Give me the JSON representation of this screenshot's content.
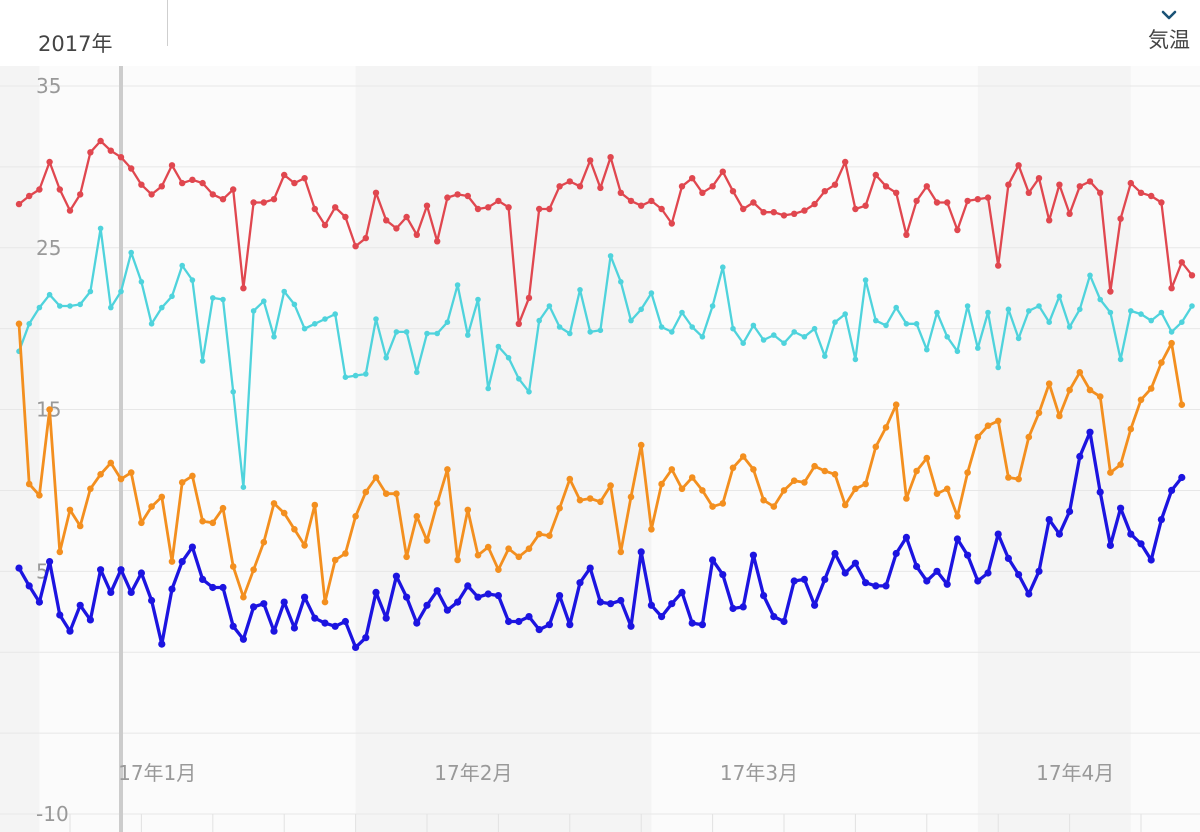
{
  "header": {
    "year_label": "2017年",
    "metric_label": "気温",
    "metric_icon": "chevron-down-icon"
  },
  "chart_data": {
    "type": "line",
    "title": "",
    "xlabel": "",
    "ylabel": "",
    "ylim": [
      -10,
      35
    ],
    "yticks": [
      {
        "label": "35",
        "value": 35
      },
      {
        "label": "25",
        "value": 25
      },
      {
        "label": "15",
        "value": 15
      },
      {
        "label": "5",
        "value": 5
      },
      {
        "label": "-10",
        "value": -10
      }
    ],
    "xticks": [
      {
        "label": "17年1月",
        "day": 1
      },
      {
        "label": "17年2月",
        "day": 32
      },
      {
        "label": "17年3月",
        "day": 60
      },
      {
        "label": "17年4月",
        "day": 91
      }
    ],
    "x_start_day": -10,
    "x_step_days": 1,
    "grid": true,
    "background_bands": [
      {
        "from_day": -18,
        "to_day": -8,
        "color": "#f4f4f4"
      },
      {
        "from_day": 23,
        "to_day": 52,
        "color": "#f4f4f4"
      },
      {
        "from_day": 84,
        "to_day": 99,
        "color": "#f4f4f4"
      }
    ],
    "cursor_day": 0,
    "series": [
      {
        "color": "#e0474f",
        "marker": 3.2,
        "width": 2.3,
        "values": [
          27.7,
          28.2,
          28.6,
          30.3,
          28.6,
          27.3,
          28.3,
          30.9,
          31.6,
          31.0,
          30.6,
          29.9,
          28.9,
          28.3,
          28.8,
          30.1,
          29.0,
          29.2,
          29.0,
          28.3,
          28.0,
          28.6,
          22.5,
          27.8,
          27.8,
          28.0,
          29.5,
          29.0,
          29.3,
          27.4,
          26.4,
          27.5,
          26.9,
          25.1,
          25.6,
          28.4,
          26.7,
          26.2,
          26.9,
          25.8,
          27.6,
          25.4,
          28.1,
          28.3,
          28.2,
          27.4,
          27.5,
          27.9,
          27.5,
          20.3,
          21.9,
          27.4,
          27.4,
          28.8,
          29.1,
          28.8,
          30.4,
          28.7,
          30.6,
          28.4,
          27.9,
          27.6,
          27.9,
          27.4,
          26.5,
          28.8,
          29.3,
          28.4,
          28.8,
          29.7,
          28.5,
          27.4,
          27.8,
          27.2,
          27.2,
          27.0,
          27.1,
          27.3,
          27.7,
          28.5,
          28.9,
          30.3,
          27.4,
          27.6,
          29.5,
          28.8,
          28.4,
          25.8,
          27.9,
          28.8,
          27.8,
          27.8,
          26.1,
          27.9,
          28.0,
          28.1,
          23.9,
          28.9,
          30.1,
          28.4,
          29.3,
          26.7,
          28.9,
          27.1,
          28.8,
          29.1,
          28.4,
          22.3,
          26.8,
          29.0,
          28.4,
          28.2,
          27.8,
          22.5,
          24.1,
          23.3
        ]
      },
      {
        "color": "#4fd3dc",
        "marker": 2.8,
        "width": 2.3,
        "values": [
          18.6,
          20.3,
          21.3,
          22.1,
          21.4,
          21.4,
          21.5,
          22.3,
          26.2,
          21.3,
          22.3,
          24.7,
          22.9,
          20.3,
          21.3,
          22.0,
          23.9,
          23.0,
          18.0,
          21.9,
          21.8,
          16.1,
          10.2,
          21.1,
          21.7,
          19.5,
          22.3,
          21.5,
          20.0,
          20.3,
          20.6,
          20.9,
          17.0,
          17.1,
          17.2,
          20.6,
          18.2,
          19.8,
          19.8,
          17.3,
          19.7,
          19.7,
          20.4,
          22.7,
          19.6,
          21.8,
          16.3,
          18.9,
          18.2,
          16.9,
          16.1,
          20.5,
          21.4,
          20.1,
          19.7,
          22.4,
          19.8,
          19.9,
          24.5,
          22.9,
          20.5,
          21.2,
          22.2,
          20.1,
          19.8,
          21.0,
          20.1,
          19.5,
          21.4,
          23.8,
          20.0,
          19.1,
          20.2,
          19.3,
          19.6,
          19.1,
          19.8,
          19.5,
          20.0,
          18.3,
          20.4,
          20.9,
          18.1,
          23.0,
          20.5,
          20.2,
          21.3,
          20.3,
          20.3,
          18.7,
          21.0,
          19.5,
          18.6,
          21.4,
          18.8,
          21.0,
          17.6,
          21.2,
          19.4,
          21.1,
          21.4,
          20.4,
          22.0,
          20.1,
          21.2,
          23.3,
          21.8,
          21.0,
          18.1,
          21.1,
          20.9,
          20.5,
          21.0,
          19.8,
          20.4,
          21.4
        ]
      },
      {
        "color": "#f38f1f",
        "marker": 3.3,
        "width": 2.8,
        "values": [
          20.3,
          10.4,
          9.7,
          15.0,
          6.2,
          8.8,
          7.8,
          10.1,
          11.0,
          11.7,
          10.7,
          11.1,
          8.0,
          9.0,
          9.6,
          5.6,
          10.5,
          10.9,
          8.1,
          8.0,
          8.9,
          5.3,
          3.4,
          5.1,
          6.8,
          9.2,
          8.6,
          7.6,
          6.6,
          9.1,
          3.1,
          5.7,
          6.1,
          8.4,
          9.9,
          10.8,
          9.8,
          9.8,
          5.9,
          8.4,
          6.9,
          9.2,
          11.3,
          5.7,
          8.8,
          6.0,
          6.5,
          5.1,
          6.4,
          5.9,
          6.4,
          7.3,
          7.2,
          8.9,
          10.7,
          9.4,
          9.5,
          9.3,
          10.3,
          6.2,
          9.6,
          12.8,
          7.6,
          10.4,
          11.3,
          10.1,
          10.8,
          10.0,
          9.0,
          9.2,
          11.4,
          12.1,
          11.3,
          9.4,
          9.0,
          10.0,
          10.6,
          10.5,
          11.5,
          11.2,
          11.0,
          9.1,
          10.1,
          10.4,
          12.7,
          13.9,
          15.3,
          9.5,
          11.2,
          12.0,
          9.8,
          10.1,
          8.4,
          11.1,
          13.3,
          14.0,
          14.3,
          10.8,
          10.7,
          13.3,
          14.8,
          16.6,
          14.6,
          16.2,
          17.3,
          16.2,
          15.8,
          11.1,
          11.6,
          13.8,
          15.6,
          16.3,
          17.9,
          19.1,
          15.3
        ]
      },
      {
        "color": "#1c14e0",
        "marker": 3.6,
        "width": 3.3,
        "values": [
          5.2,
          4.1,
          3.1,
          5.6,
          2.3,
          1.3,
          2.9,
          2.0,
          5.1,
          3.7,
          5.1,
          3.7,
          4.9,
          3.2,
          0.5,
          3.9,
          5.6,
          6.5,
          4.5,
          4.0,
          4.0,
          1.6,
          0.8,
          2.8,
          3.0,
          1.3,
          3.1,
          1.5,
          3.4,
          2.1,
          1.8,
          1.6,
          1.9,
          0.3,
          0.9,
          3.7,
          2.1,
          4.7,
          3.4,
          1.8,
          2.9,
          3.8,
          2.6,
          3.1,
          4.1,
          3.4,
          3.6,
          3.5,
          1.9,
          1.9,
          2.2,
          1.4,
          1.7,
          3.5,
          1.7,
          4.3,
          5.2,
          3.1,
          3.0,
          3.2,
          1.6,
          6.2,
          2.9,
          2.2,
          3.0,
          3.7,
          1.8,
          1.7,
          5.7,
          4.8,
          2.7,
          2.8,
          6.0,
          3.5,
          2.2,
          1.9,
          4.4,
          4.5,
          2.9,
          4.5,
          6.1,
          4.9,
          5.5,
          4.3,
          4.1,
          4.1,
          6.1,
          7.1,
          5.3,
          4.4,
          5.0,
          4.2,
          7.0,
          6.0,
          4.4,
          4.9,
          7.3,
          5.8,
          4.8,
          3.6,
          5.0,
          8.2,
          7.3,
          8.7,
          12.1,
          13.6,
          9.9,
          6.6,
          8.9,
          7.3,
          6.7,
          5.7,
          8.2,
          10.0,
          10.8
        ]
      }
    ]
  }
}
